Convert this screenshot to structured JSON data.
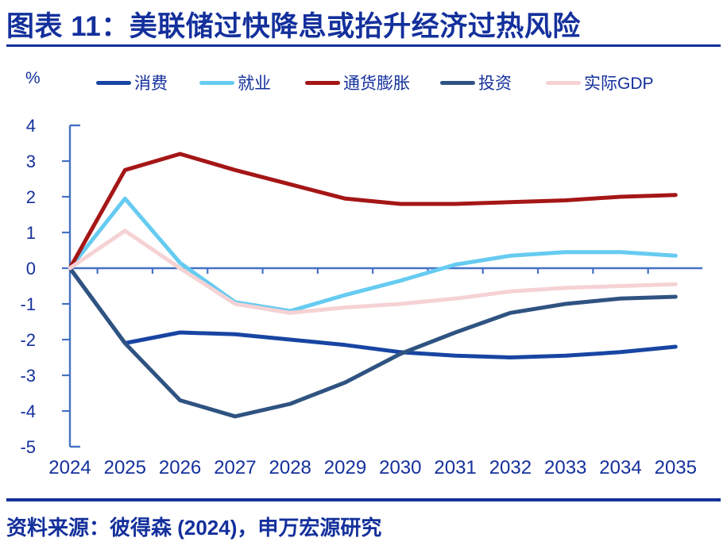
{
  "header": {
    "title": "图表 11：美联储过快降息或抬升经济过热风险"
  },
  "footer": {
    "source": "资料来源：彼得森 (2024)，申万宏源研究"
  },
  "colors": {
    "text_blue": "#14309C",
    "axis_blue": "#4472C4",
    "background": "#FFFFFF"
  },
  "chart_data": {
    "type": "line",
    "title": "美联储过快降息或抬升经济过热风险",
    "unit_label": "%",
    "xlabel": "",
    "ylabel": "%",
    "x": [
      2024,
      2025,
      2026,
      2027,
      2028,
      2029,
      2030,
      2031,
      2032,
      2033,
      2034,
      2035
    ],
    "ylim": [
      -5,
      4
    ],
    "yticks": [
      4,
      3,
      2,
      1,
      0,
      -1,
      -2,
      -3,
      -4,
      -5
    ],
    "grid": false,
    "legend_position": "top",
    "series": [
      {
        "key": "consumption",
        "name": "消费",
        "color": "#1845A3",
        "values": [
          0,
          -2.1,
          -1.8,
          -1.85,
          -2.0,
          -2.15,
          -2.35,
          -2.45,
          -2.5,
          -2.45,
          -2.35,
          -2.2
        ]
      },
      {
        "key": "employment",
        "name": "就业",
        "color": "#66CBF1",
        "values": [
          0,
          1.95,
          0.15,
          -0.95,
          -1.2,
          -0.75,
          -0.35,
          0.1,
          0.35,
          0.45,
          0.45,
          0.35
        ]
      },
      {
        "key": "inflation",
        "name": "通货膨胀",
        "color": "#A51616",
        "values": [
          0,
          2.75,
          3.2,
          2.75,
          2.35,
          1.95,
          1.8,
          1.8,
          1.85,
          1.9,
          2.0,
          2.05
        ]
      },
      {
        "key": "investment",
        "name": "投资",
        "color": "#2F5381",
        "values": [
          0,
          -2.1,
          -3.7,
          -4.15,
          -3.8,
          -3.2,
          -2.4,
          -1.8,
          -1.25,
          -1.0,
          -0.85,
          -0.8
        ]
      },
      {
        "key": "real-gdp",
        "name": "实际GDP",
        "color": "#F5D2D4",
        "values": [
          0,
          1.05,
          0.0,
          -1.0,
          -1.25,
          -1.1,
          -1.0,
          -0.85,
          -0.65,
          -0.55,
          -0.5,
          -0.45
        ]
      }
    ]
  }
}
